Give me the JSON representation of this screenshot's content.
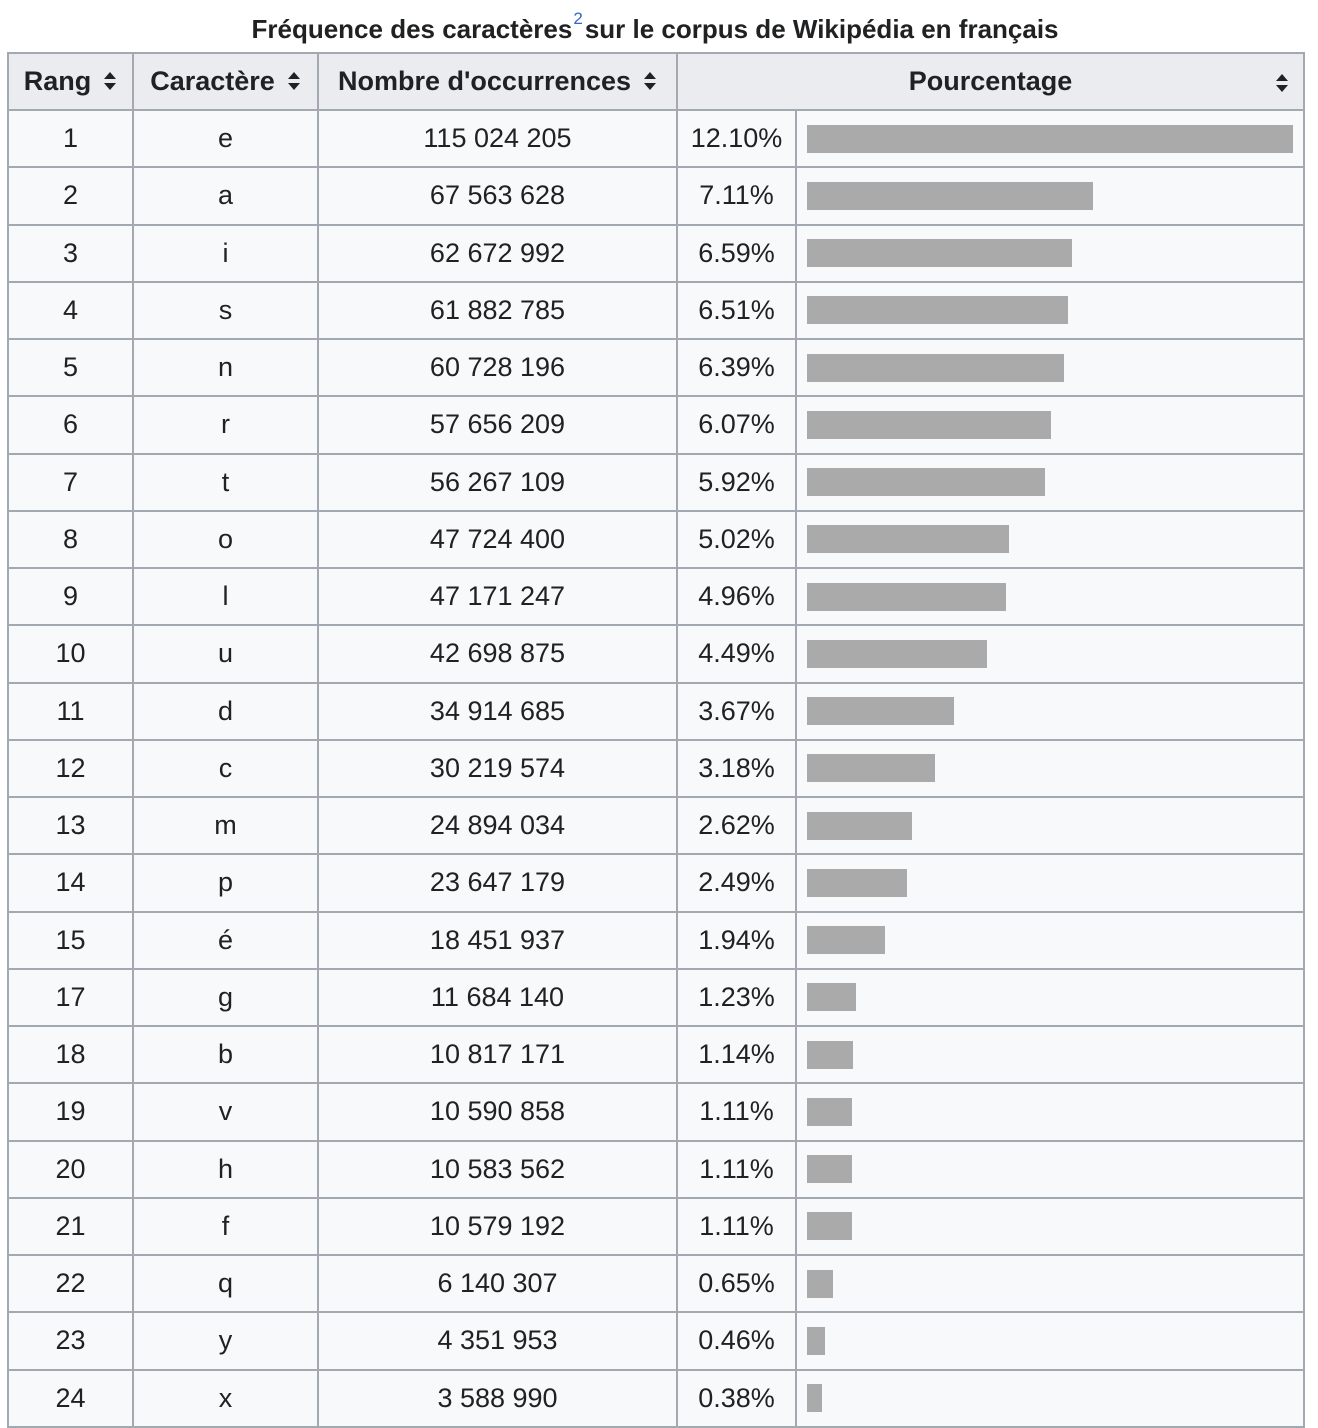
{
  "caption": {
    "text_before": "Fréquence des caractères",
    "footnote": "2",
    "text_after": "sur le corpus de Wikipédia en français"
  },
  "columns": {
    "rank": "Rang",
    "character": "Caractère",
    "occurrences": "Nombre d'occurrences",
    "percentage": "Pourcentage"
  },
  "bar_scale_max_percent": 12.1,
  "colors": {
    "bar": "#aaaaaa",
    "header_bg": "#eaecf0",
    "cell_bg": "#f8f9fa",
    "border": "#a2a9b1",
    "footnote_link": "#3366cc"
  },
  "rows": [
    {
      "rank": "1",
      "char": "e",
      "count": "115 024 205",
      "pct_label": "12.10%",
      "pct": 12.1
    },
    {
      "rank": "2",
      "char": "a",
      "count": "67 563 628",
      "pct_label": "7.11%",
      "pct": 7.11
    },
    {
      "rank": "3",
      "char": "i",
      "count": "62 672 992",
      "pct_label": "6.59%",
      "pct": 6.59
    },
    {
      "rank": "4",
      "char": "s",
      "count": "61 882 785",
      "pct_label": "6.51%",
      "pct": 6.51
    },
    {
      "rank": "5",
      "char": "n",
      "count": "60 728 196",
      "pct_label": "6.39%",
      "pct": 6.39
    },
    {
      "rank": "6",
      "char": "r",
      "count": "57 656 209",
      "pct_label": "6.07%",
      "pct": 6.07
    },
    {
      "rank": "7",
      "char": "t",
      "count": "56 267 109",
      "pct_label": "5.92%",
      "pct": 5.92
    },
    {
      "rank": "8",
      "char": "o",
      "count": "47 724 400",
      "pct_label": "5.02%",
      "pct": 5.02
    },
    {
      "rank": "9",
      "char": "l",
      "count": "47 171 247",
      "pct_label": "4.96%",
      "pct": 4.96
    },
    {
      "rank": "10",
      "char": "u",
      "count": "42 698 875",
      "pct_label": "4.49%",
      "pct": 4.49
    },
    {
      "rank": "11",
      "char": "d",
      "count": "34 914 685",
      "pct_label": "3.67%",
      "pct": 3.67
    },
    {
      "rank": "12",
      "char": "c",
      "count": "30 219 574",
      "pct_label": "3.18%",
      "pct": 3.18
    },
    {
      "rank": "13",
      "char": "m",
      "count": "24 894 034",
      "pct_label": "2.62%",
      "pct": 2.62
    },
    {
      "rank": "14",
      "char": "p",
      "count": "23 647 179",
      "pct_label": "2.49%",
      "pct": 2.49
    },
    {
      "rank": "15",
      "char": "é",
      "count": "18 451 937",
      "pct_label": "1.94%",
      "pct": 1.94
    },
    {
      "rank": "17",
      "char": "g",
      "count": "11 684 140",
      "pct_label": "1.23%",
      "pct": 1.23
    },
    {
      "rank": "18",
      "char": "b",
      "count": "10 817 171",
      "pct_label": "1.14%",
      "pct": 1.14
    },
    {
      "rank": "19",
      "char": "v",
      "count": "10 590 858",
      "pct_label": "1.11%",
      "pct": 1.11
    },
    {
      "rank": "20",
      "char": "h",
      "count": "10 583 562",
      "pct_label": "1.11%",
      "pct": 1.11
    },
    {
      "rank": "21",
      "char": "f",
      "count": "10 579 192",
      "pct_label": "1.11%",
      "pct": 1.11
    },
    {
      "rank": "22",
      "char": "q",
      "count": "6 140 307",
      "pct_label": "0.65%",
      "pct": 0.65
    },
    {
      "rank": "23",
      "char": "y",
      "count": "4 351 953",
      "pct_label": "0.46%",
      "pct": 0.46
    },
    {
      "rank": "24",
      "char": "x",
      "count": "3 588 990",
      "pct_label": "0.38%",
      "pct": 0.38
    }
  ]
}
